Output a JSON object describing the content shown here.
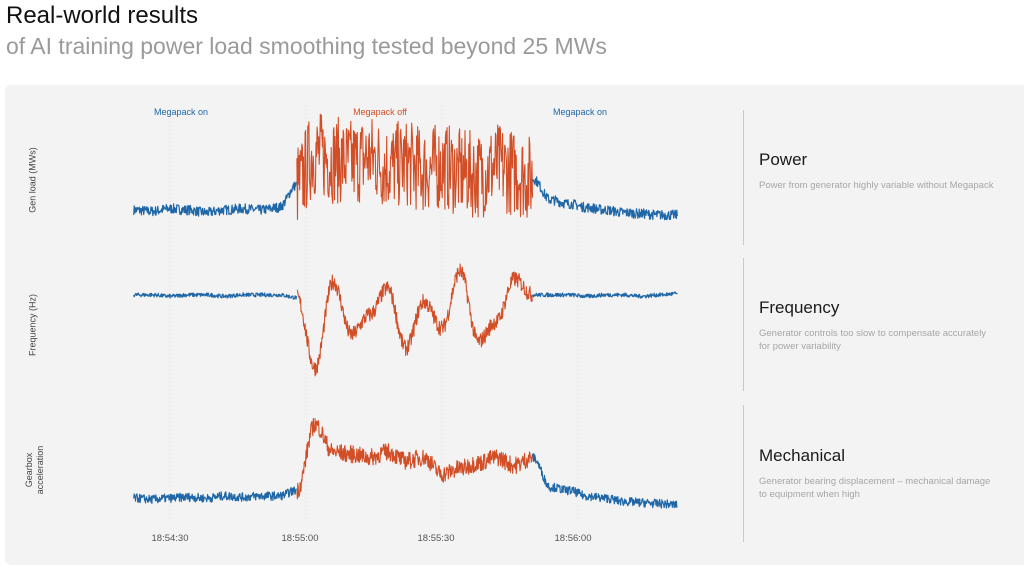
{
  "header": {
    "title": "Real-world results",
    "subtitle": "of AI training power load smoothing tested beyond 25 MWs"
  },
  "colors": {
    "on": "#1f67a6",
    "off": "#d14e26",
    "background": "#f3f3f4"
  },
  "chart_data": {
    "type": "line",
    "x_ticks": [
      "18:54:30",
      "18:55:00",
      "18:55:30",
      "18:56:00"
    ],
    "segments": [
      {
        "label": "Megapack on",
        "start": "18:54:22",
        "end": "18:54:58",
        "state": "on"
      },
      {
        "label": "Megapack off",
        "start": "18:54:58",
        "end": "18:55:50",
        "state": "off"
      },
      {
        "label": "Megapack on",
        "start": "18:55:50",
        "end": "18:56:22",
        "state": "on"
      }
    ],
    "x": [
      "18:54:22",
      "18:54:26",
      "18:54:30",
      "18:54:34",
      "18:54:38",
      "18:54:42",
      "18:54:46",
      "18:54:50",
      "18:54:54",
      "18:54:58",
      "18:55:02",
      "18:55:06",
      "18:55:10",
      "18:55:14",
      "18:55:18",
      "18:55:22",
      "18:55:26",
      "18:55:30",
      "18:55:34",
      "18:55:38",
      "18:55:42",
      "18:55:46",
      "18:55:50",
      "18:55:54",
      "18:55:58",
      "18:56:02",
      "18:56:06",
      "18:56:10",
      "18:56:14",
      "18:56:18",
      "18:56:22"
    ],
    "y_units": "relative (no y-axis ticks shown)",
    "panels": [
      {
        "ylabel": "Gen load (MWs)",
        "title": "Power",
        "description": "Power from generator highly variable without Megapack",
        "values": [
          20,
          19,
          21,
          20,
          18,
          20,
          21,
          20,
          22,
          40,
          65,
          60,
          58,
          62,
          55,
          57,
          52,
          55,
          50,
          48,
          55,
          50,
          45,
          28,
          25,
          22,
          20,
          18,
          17,
          16,
          16
        ]
      },
      {
        "ylabel": "Frequency (Hz)",
        "title": "Frequency",
        "description": "Generator controls too slow to compensate accurately for power variability",
        "values": [
          70,
          70,
          69,
          70,
          70,
          69,
          70,
          70,
          70,
          68,
          15,
          80,
          40,
          55,
          75,
          30,
          65,
          45,
          88,
          35,
          50,
          82,
          70,
          70,
          70,
          69,
          70,
          70,
          69,
          70,
          71
        ]
      },
      {
        "ylabel": "Gearbox acceleration",
        "title": "Mechanical",
        "description": "Generator bearing displacement – mechanical damage to equipment when high",
        "values": [
          18,
          17,
          18,
          19,
          18,
          20,
          19,
          20,
          20,
          25,
          85,
          60,
          58,
          55,
          60,
          52,
          55,
          40,
          45,
          50,
          55,
          48,
          55,
          28,
          25,
          20,
          18,
          15,
          14,
          13,
          12
        ]
      }
    ]
  }
}
